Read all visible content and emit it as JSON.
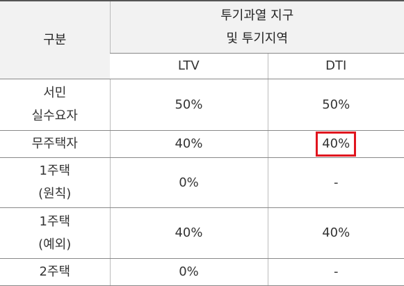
{
  "header": {
    "title": "구분",
    "group": "투기과열 지구\n및 투기지역",
    "columns": [
      "LTV",
      "DTI"
    ]
  },
  "table": {
    "rows": [
      [
        "서민\n실수요자",
        "50%",
        "50%"
      ],
      [
        "무주택자",
        "40%",
        "40%"
      ],
      [
        "1주택\n(원칙)",
        "0%",
        "-"
      ],
      [
        "1주택\n(예외)",
        "40%",
        "40%"
      ],
      [
        "2주택",
        "0%",
        "-"
      ]
    ]
  }
}
